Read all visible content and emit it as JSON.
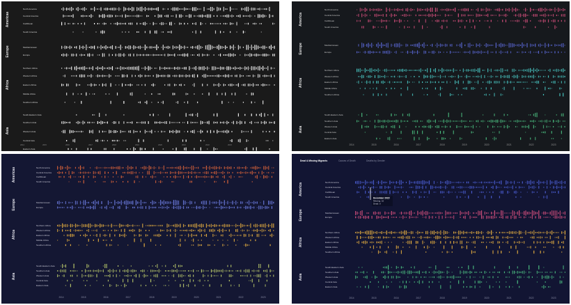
{
  "chart_data": [
    {
      "type": "strip",
      "theme": "bw",
      "background": "#1a1a1a",
      "tabs": [],
      "region_colors": {
        "Americas": "#ffffff",
        "Europe": "#ffffff",
        "Africa": "#ffffff",
        "Asia": "#ffffff"
      },
      "regions": [
        {
          "name": "Americas",
          "subregions": [
            "North America",
            "Central America",
            "Caribbean",
            "South America"
          ]
        },
        {
          "name": "Europe",
          "subregions": [
            "Mediterranean",
            "Europe"
          ]
        },
        {
          "name": "Africa",
          "subregions": [
            "Northern Africa",
            "Western Africa",
            "Eastern Africa",
            "Middle Africa",
            "Southern Africa"
          ]
        },
        {
          "name": "Asia",
          "subregions": [
            "South-Eastern Asia",
            "Southern Asia",
            "Western Asia",
            "Central Asia",
            "Eastern Asia"
          ]
        }
      ],
      "x_ticks": [
        "2014",
        "2015",
        "2016",
        "2017",
        "2018",
        "2019",
        "2020",
        "2021",
        "2022",
        "2023"
      ],
      "tooltip": null
    },
    {
      "type": "strip",
      "theme": "dark-color",
      "background": "#16191d",
      "tabs": [],
      "region_colors": {
        "Americas": "#d9507e",
        "Europe": "#5b68d6",
        "Africa": "#49c6c2",
        "Asia": "#4bbd80"
      },
      "regions": [
        {
          "name": "America",
          "subregions": [
            "North America",
            "Central America",
            "Caribbean",
            "South America"
          ]
        },
        {
          "name": "Europe",
          "subregions": [
            "Mediterranean",
            "Europe"
          ]
        },
        {
          "name": "Africa",
          "subregions": [
            "Northern Africa",
            "Western Africa",
            "Eastern Africa",
            "Middle Africa",
            "Southern Africa"
          ]
        },
        {
          "name": "Asia",
          "subregions": [
            "South-Eastern Asia",
            "Southern Asia",
            "Western Asia",
            "Central Asia",
            "Eastern Asia"
          ]
        }
      ],
      "x_ticks": [
        "2014",
        "2015",
        "2016",
        "2017",
        "2018",
        "2019",
        "2020",
        "2021",
        "2022",
        "2023"
      ],
      "tooltip": null
    },
    {
      "type": "strip",
      "theme": "navy-warm",
      "background": "#141733",
      "tabs": [],
      "region_colors": {
        "Americas": "#e0653a",
        "Europe": "#6f7fe6",
        "Africa": "#e8b040",
        "Asia": "#b9c86a"
      },
      "regions": [
        {
          "name": "Americas",
          "subregions": [
            "North America",
            "Central America",
            "Caribbean",
            "South America"
          ]
        },
        {
          "name": "Europe",
          "subregions": [
            "Mediterranean",
            "Europe"
          ]
        },
        {
          "name": "Africa",
          "subregions": [
            "Northern Africa",
            "Western Africa",
            "Eastern Africa",
            "Middle Africa",
            "Southern Africa"
          ]
        },
        {
          "name": "Asia",
          "subregions": [
            "South-Eastern Asia",
            "Southern Asia",
            "Western Asia",
            "Central Asia",
            "Eastern Asia"
          ]
        }
      ],
      "x_ticks": [
        "2014",
        "2015",
        "2016",
        "2017",
        "2018",
        "2019",
        "2020",
        "2021",
        "2022",
        "2023"
      ],
      "tooltip": null
    },
    {
      "type": "strip",
      "theme": "navy-mixed",
      "background": "#121533",
      "tabs": [
        "Dead & Missing Migrants",
        "Causes of Death",
        "Deaths by Gender"
      ],
      "region_colors": {
        "Americas": "#4c5fd6",
        "Europe": "#d9507e",
        "Africa": "#e8b040",
        "Asia": "#4bbd80"
      },
      "regions": [
        {
          "name": "America",
          "subregions": [
            "North America",
            "Central America",
            "Caribbean",
            "South America"
          ]
        },
        {
          "name": "Europe",
          "subregions": [
            "Mediterranean",
            "Europe"
          ]
        },
        {
          "name": "Africa",
          "subregions": [
            "Northern Africa",
            "Western Africa",
            "Eastern Africa",
            "Middle Africa",
            "Southern Africa"
          ]
        },
        {
          "name": "Asia",
          "subregions": [
            "South-Eastern Asia",
            "Southern Asia",
            "Western Asia",
            "Central Asia",
            "Eastern Asia"
          ]
        }
      ],
      "x_ticks": [
        "2014",
        "2015",
        "2016",
        "2017",
        "2018",
        "2019",
        "2020",
        "2021",
        "2022",
        "2023"
      ],
      "tooltip": {
        "title": "December 2015",
        "missing": "Missing: 10",
        "dead": "Dead: 0"
      }
    }
  ]
}
